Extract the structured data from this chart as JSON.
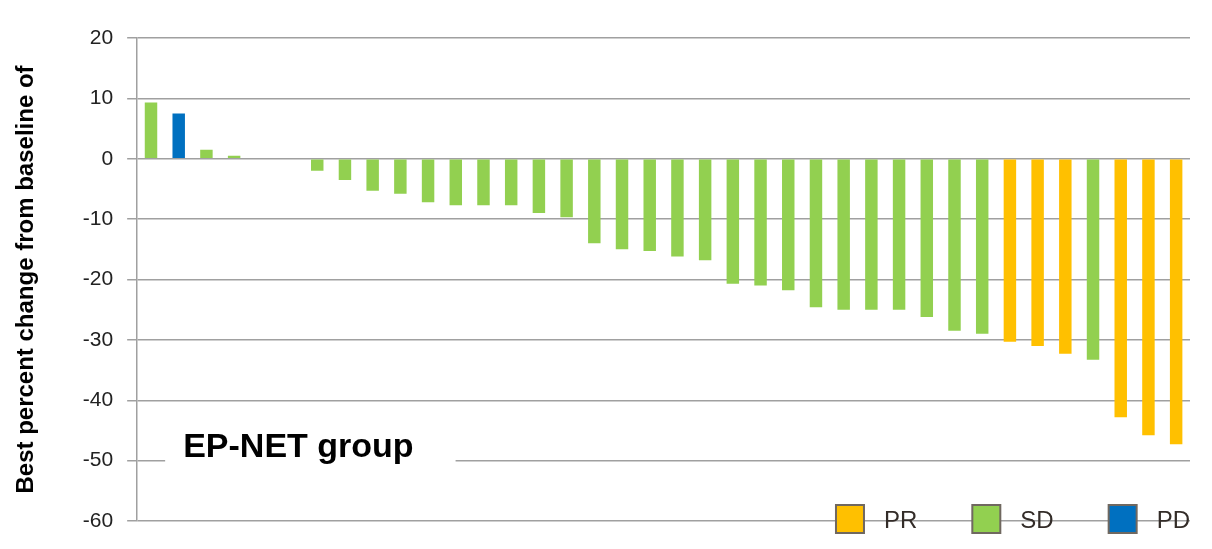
{
  "chart_data": {
    "type": "bar",
    "ylabel": "Best percent change from baseline of",
    "annotations": [
      "EP-NET group"
    ],
    "categories": [
      null,
      null,
      null,
      null,
      null,
      null,
      null,
      null,
      null,
      null,
      null,
      null,
      null,
      null,
      null,
      null,
      null,
      null,
      null,
      null,
      null,
      null,
      null,
      null,
      null,
      null,
      null,
      null,
      null,
      null,
      null,
      null,
      null,
      null,
      null,
      null,
      null,
      null
    ],
    "series": [
      {
        "name": "PR",
        "color": "#ffc000",
        "values": [
          null,
          null,
          null,
          null,
          null,
          null,
          null,
          null,
          null,
          null,
          null,
          null,
          null,
          null,
          null,
          null,
          null,
          null,
          null,
          null,
          null,
          null,
          null,
          null,
          null,
          null,
          null,
          null,
          null,
          null,
          null,
          -30.3,
          -31,
          -32.3,
          null,
          -42.8,
          -45.8,
          -47.3
        ]
      },
      {
        "name": "SD",
        "color": "#92d050",
        "values": [
          9.3,
          null,
          1.5,
          0.5,
          null,
          null,
          -2,
          -3.5,
          -5.3,
          -5.8,
          -7.2,
          -7.7,
          -7.7,
          -7.7,
          -9,
          -9.7,
          -14,
          -15,
          -15.3,
          -16.2,
          -16.8,
          -20.7,
          -21,
          -21.8,
          -24.6,
          -25,
          -25,
          -25,
          -26.2,
          -28.5,
          -29,
          null,
          null,
          null,
          -33.3,
          null,
          null,
          null
        ]
      },
      {
        "name": "PD",
        "color": "#0070c0",
        "values": [
          null,
          7.5,
          null,
          null,
          null,
          null,
          null,
          null,
          null,
          null,
          null,
          null,
          null,
          null,
          null,
          null,
          null,
          null,
          null,
          null,
          null,
          null,
          null,
          null,
          null,
          null,
          null,
          null,
          null,
          null,
          null,
          null,
          null,
          null,
          null,
          null,
          null,
          null
        ]
      }
    ],
    "ylim": [
      -60,
      20
    ],
    "yticks": [
      -60,
      -50,
      -40,
      -30,
      -20,
      -10,
      0,
      10,
      20
    ],
    "grid": "y",
    "legend": "bottom right"
  }
}
